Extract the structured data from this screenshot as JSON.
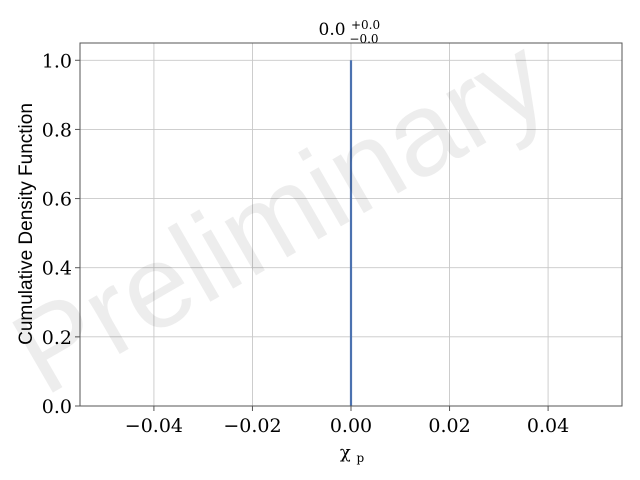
{
  "chart_data": {
    "type": "line",
    "title": {
      "base": "0.0",
      "sup": "+0.0",
      "sub": "−0.0"
    },
    "xlabel": {
      "main": "χ",
      "sub": "p"
    },
    "ylabel": "Cumulative Density Function",
    "xlim": [
      -0.055,
      0.055
    ],
    "ylim": [
      0.0,
      1.05
    ],
    "x_ticks": [
      -0.04,
      -0.02,
      0.0,
      0.02,
      0.04
    ],
    "x_tick_labels": [
      "−0.04",
      "−0.02",
      "0.00",
      "0.02",
      "0.04"
    ],
    "y_ticks": [
      0.0,
      0.2,
      0.4,
      0.6,
      0.8,
      1.0
    ],
    "y_tick_labels": [
      "0.0",
      "0.2",
      "0.4",
      "0.6",
      "0.8",
      "1.0"
    ],
    "grid": true,
    "series": [
      {
        "color": "#4c72b0",
        "x": [
          0.0,
          0.0
        ],
        "y": [
          0.0,
          1.0
        ]
      }
    ],
    "watermark": "Preliminary"
  }
}
